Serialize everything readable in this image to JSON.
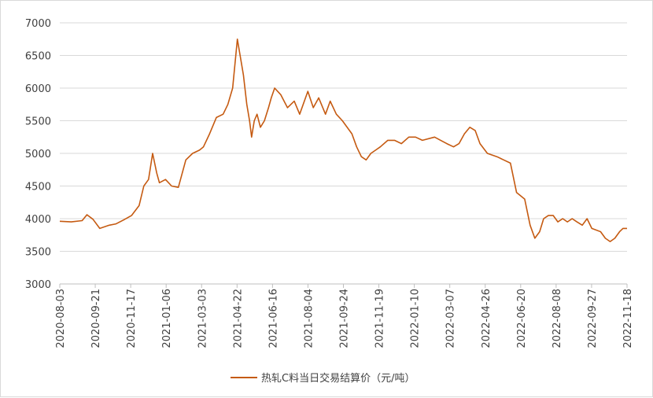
{
  "chart_data": {
    "type": "line",
    "title": "",
    "xlabel": "",
    "ylabel": "",
    "ylim": [
      3000,
      7000
    ],
    "y_ticks": [
      3000,
      3500,
      4000,
      4500,
      5000,
      5500,
      6000,
      6500,
      7000
    ],
    "x_tick_labels": [
      "2020-08-03",
      "2020-09-21",
      "2020-11-17",
      "2021-01-06",
      "2021-03-03",
      "2021-04-22",
      "2021-06-16",
      "2021-08-04",
      "2021-09-24",
      "2021-11-19",
      "2022-01-10",
      "2022-03-07",
      "2022-04-26",
      "2022-06-20",
      "2022-08-08",
      "2022-09-27",
      "2022-11-18"
    ],
    "grid": "horizontal",
    "legend_position": "bottom",
    "line_color": "#C55A11",
    "series": [
      {
        "name": "热轧C料当日交易结算价（元/吨）",
        "x": [
          "2020-08-03",
          "2020-08-20",
          "2020-09-05",
          "2020-09-12",
          "2020-09-21",
          "2020-10-01",
          "2020-10-15",
          "2020-10-25",
          "2020-11-05",
          "2020-11-17",
          "2020-11-28",
          "2020-12-05",
          "2020-12-12",
          "2020-12-18",
          "2020-12-24",
          "2020-12-28",
          "2021-01-06",
          "2021-01-15",
          "2021-01-25",
          "2021-02-05",
          "2021-02-15",
          "2021-02-25",
          "2021-03-03",
          "2021-03-12",
          "2021-03-22",
          "2021-04-01",
          "2021-04-08",
          "2021-04-15",
          "2021-04-22",
          "2021-05-01",
          "2021-05-06",
          "2021-05-10",
          "2021-05-13",
          "2021-05-17",
          "2021-05-21",
          "2021-05-26",
          "2021-06-01",
          "2021-06-07",
          "2021-06-11",
          "2021-06-16",
          "2021-06-25",
          "2021-07-05",
          "2021-07-15",
          "2021-07-23",
          "2021-08-04",
          "2021-08-12",
          "2021-08-20",
          "2021-08-30",
          "2021-09-06",
          "2021-09-15",
          "2021-09-24",
          "2021-10-08",
          "2021-10-15",
          "2021-10-22",
          "2021-10-29",
          "2021-11-05",
          "2021-11-12",
          "2021-11-19",
          "2021-11-30",
          "2021-12-10",
          "2021-12-20",
          "2021-12-31",
          "2022-01-10",
          "2022-01-20",
          "2022-02-07",
          "2022-02-16",
          "2022-02-25",
          "2022-03-07",
          "2022-03-15",
          "2022-03-23",
          "2022-03-31",
          "2022-04-08",
          "2022-04-15",
          "2022-04-26",
          "2022-05-10",
          "2022-05-20",
          "2022-05-30",
          "2022-06-08",
          "2022-06-20",
          "2022-06-28",
          "2022-07-05",
          "2022-07-12",
          "2022-07-18",
          "2022-07-25",
          "2022-08-01",
          "2022-08-08",
          "2022-08-15",
          "2022-08-22",
          "2022-08-29",
          "2022-09-05",
          "2022-09-13",
          "2022-09-20",
          "2022-09-27",
          "2022-10-10",
          "2022-10-17",
          "2022-10-24",
          "2022-10-31",
          "2022-11-07",
          "2022-11-12",
          "2022-11-18"
        ],
        "values": [
          3960,
          3950,
          3970,
          4060,
          3990,
          3850,
          3900,
          3920,
          3980,
          4050,
          4200,
          4500,
          4600,
          5000,
          4700,
          4550,
          4600,
          4500,
          4480,
          4900,
          5000,
          5050,
          5100,
          5300,
          5550,
          5600,
          5750,
          6000,
          6750,
          6200,
          5750,
          5500,
          5250,
          5500,
          5600,
          5400,
          5500,
          5700,
          5850,
          6000,
          5900,
          5700,
          5800,
          5600,
          5950,
          5700,
          5850,
          5600,
          5800,
          5600,
          5500,
          5300,
          5100,
          4950,
          4900,
          5000,
          5050,
          5100,
          5200,
          5200,
          5150,
          5250,
          5250,
          5200,
          5250,
          5200,
          5150,
          5100,
          5150,
          5300,
          5400,
          5350,
          5150,
          5000,
          4950,
          4900,
          4850,
          4400,
          4300,
          3900,
          3700,
          3800,
          4000,
          4050,
          4050,
          3950,
          4000,
          3950,
          4000,
          3950,
          3900,
          4000,
          3850,
          3800,
          3700,
          3650,
          3700,
          3800,
          3850,
          3850
        ]
      }
    ]
  }
}
